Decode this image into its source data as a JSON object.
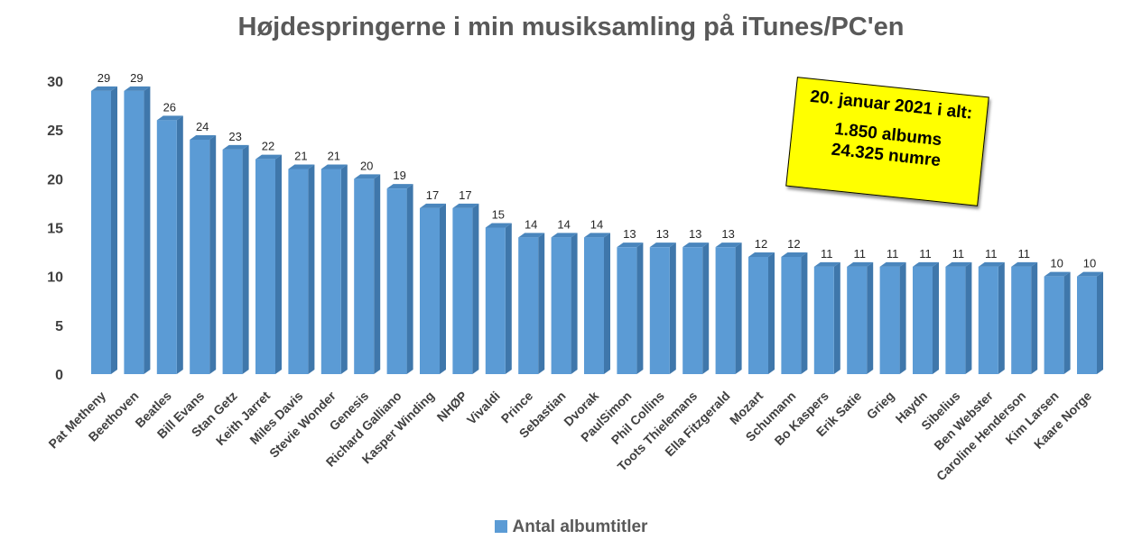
{
  "chart_data": {
    "type": "bar",
    "title": "Højdespringerne i min musiksamling på iTunes/PC'en",
    "categories": [
      "Pat Metheny",
      "Beethoven",
      "Beatles",
      "Bill Evans",
      "Stan Getz",
      "Keith Jarret",
      "Miles Davis",
      "Stevie Wonder",
      "Genesis",
      "Richard Galliano",
      "Kasper Winding",
      "NHØP",
      "Vivaldi",
      "Prince",
      "Sebastian",
      "Dvorak",
      "PaulSimon",
      "Phil Collins",
      "Toots Thielemans",
      "Ella Fitzgerald",
      "Mozart",
      "Schumann",
      "Bo Kaspers",
      "Erik Satie",
      "Grieg",
      "Haydn",
      "Sibelius",
      "Ben Webster",
      "Caroline Henderson",
      "Kim Larsen",
      "Kaare Norge"
    ],
    "series": [
      {
        "name": "Antal albumtitler",
        "values": [
          29,
          29,
          26,
          24,
          23,
          22,
          21,
          21,
          20,
          19,
          17,
          17,
          15,
          14,
          14,
          14,
          13,
          13,
          13,
          13,
          12,
          12,
          11,
          11,
          11,
          11,
          11,
          11,
          11,
          10,
          10
        ],
        "color": "#5b9bd5"
      }
    ],
    "ylim": [
      0,
      30
    ],
    "yticks": [
      0,
      5,
      10,
      15,
      20,
      25,
      30
    ],
    "grid": false,
    "legend": "bottom",
    "style": "3d-bar",
    "annotation": {
      "line1": "20. januar 2021 i alt:",
      "line2": "1.850 albums",
      "line3": "24.325 numre",
      "background": "#ffff00"
    }
  }
}
